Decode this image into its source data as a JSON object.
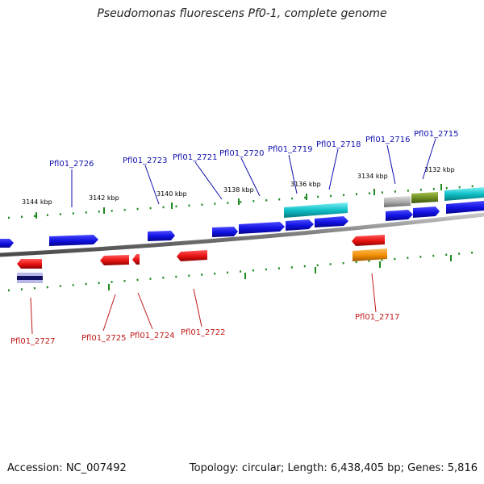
{
  "title": "Pseudomonas fluorescens Pf0-1, complete genome",
  "footer": {
    "accession": "Accession: NC_007492",
    "summary": "Topology: circular; Length: 6,438,405 bp; Genes: 5,816"
  },
  "tick_labels": [
    "3144 kbp",
    "3142 kbp",
    "3140 kbp",
    "3138 kbp",
    "3136 kbp",
    "3134 kbp",
    "3132 kbp"
  ],
  "genes_upper": [
    "Pfl01_2726",
    "Pfl01_2723",
    "Pfl01_2721",
    "Pfl01_2720",
    "Pfl01_2719",
    "Pfl01_2718",
    "Pfl01_2716",
    "Pfl01_2715"
  ],
  "genes_lower": [
    "Pfl01_2727",
    "Pfl01_2725",
    "Pfl01_2724",
    "Pfl01_2722",
    "Pfl01_2717"
  ],
  "colors": {
    "forward_gene": "#1010e0",
    "reverse_gene": "#e81010",
    "cyan_feature": "#10c0c8",
    "olive_feature": "#6a8a20",
    "gray_feature": "#a8a8a8",
    "orange_feature": "#f08c00",
    "navy_feature": "#101060",
    "tick": "#1e8a1e",
    "backbone": "#7a7a7a"
  }
}
